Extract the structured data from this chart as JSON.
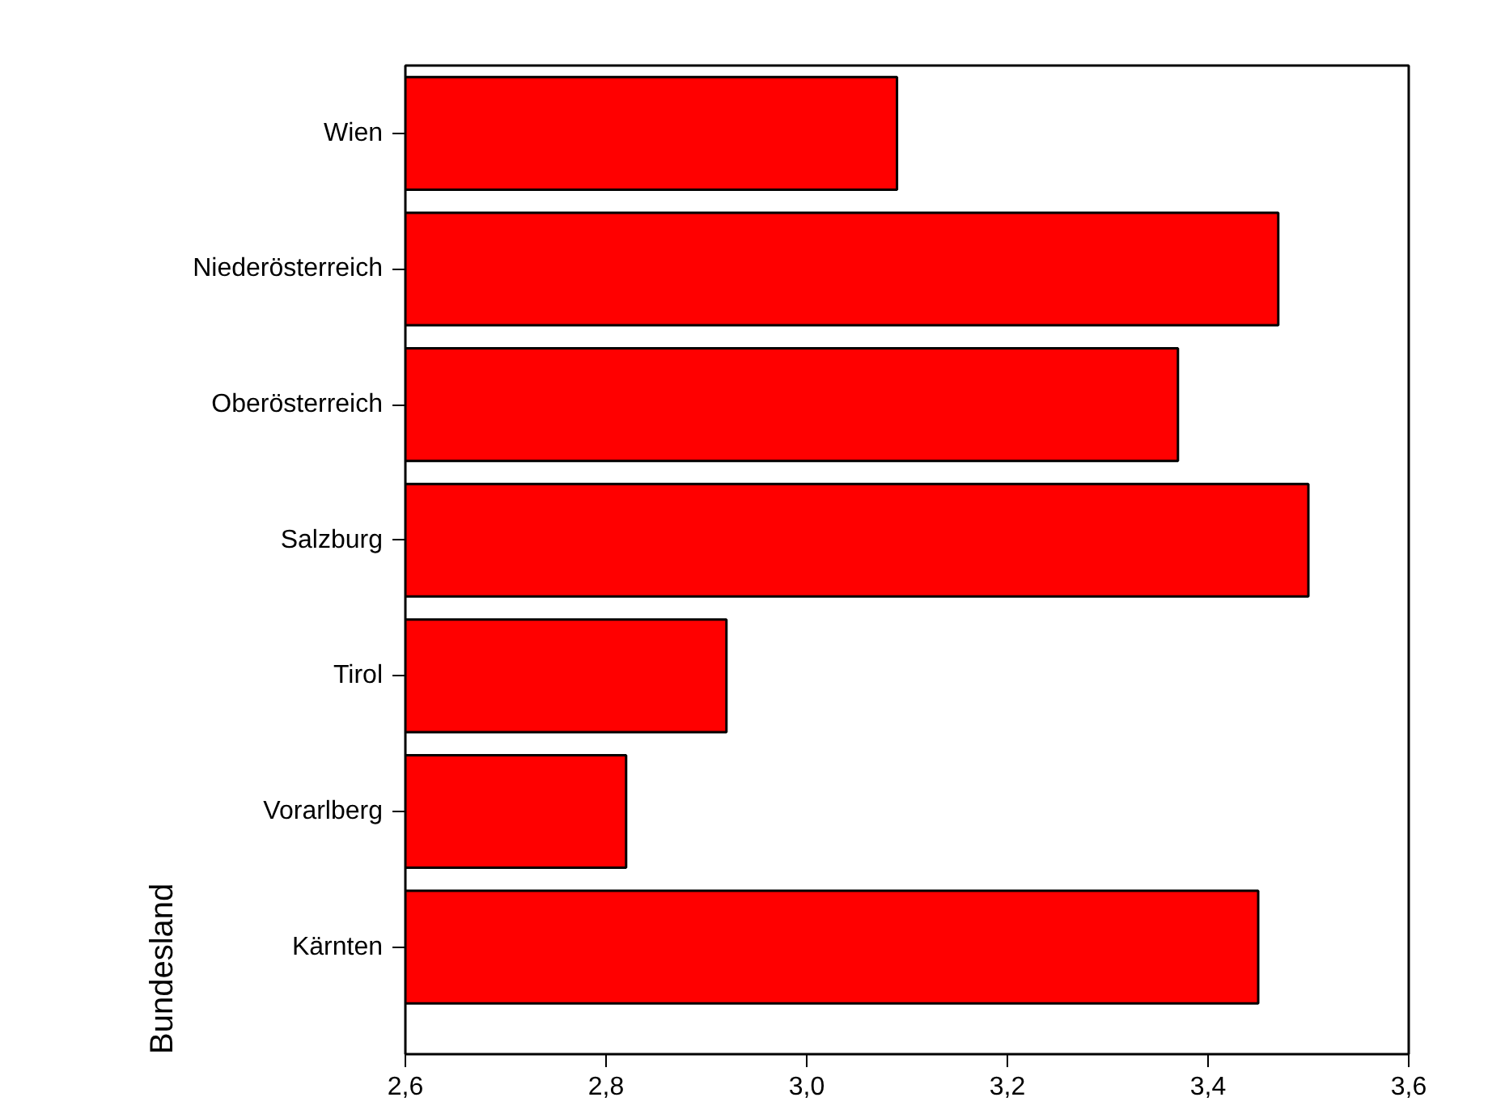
{
  "chart_data": {
    "type": "bar",
    "orientation": "horizontal",
    "ylabel": "Bundesland",
    "categories": [
      "Wien",
      "Niederösterreich",
      "Oberösterreich",
      "Salzburg",
      "Tirol",
      "Vorarlberg",
      "Kärnten"
    ],
    "values": [
      3.09,
      3.47,
      3.37,
      3.5,
      2.92,
      2.82,
      3.45
    ],
    "color": "#ff0000",
    "xlim": [
      2.6,
      3.6
    ],
    "xticks": [
      {
        "value": 2.6,
        "label": "2,6"
      },
      {
        "value": 2.8,
        "label": "2,8"
      },
      {
        "value": 3.0,
        "label": "3,0"
      },
      {
        "value": 3.2,
        "label": "3,2"
      },
      {
        "value": 3.4,
        "label": "3,4"
      },
      {
        "value": 3.6,
        "label": "3,6"
      }
    ],
    "grid": false
  }
}
